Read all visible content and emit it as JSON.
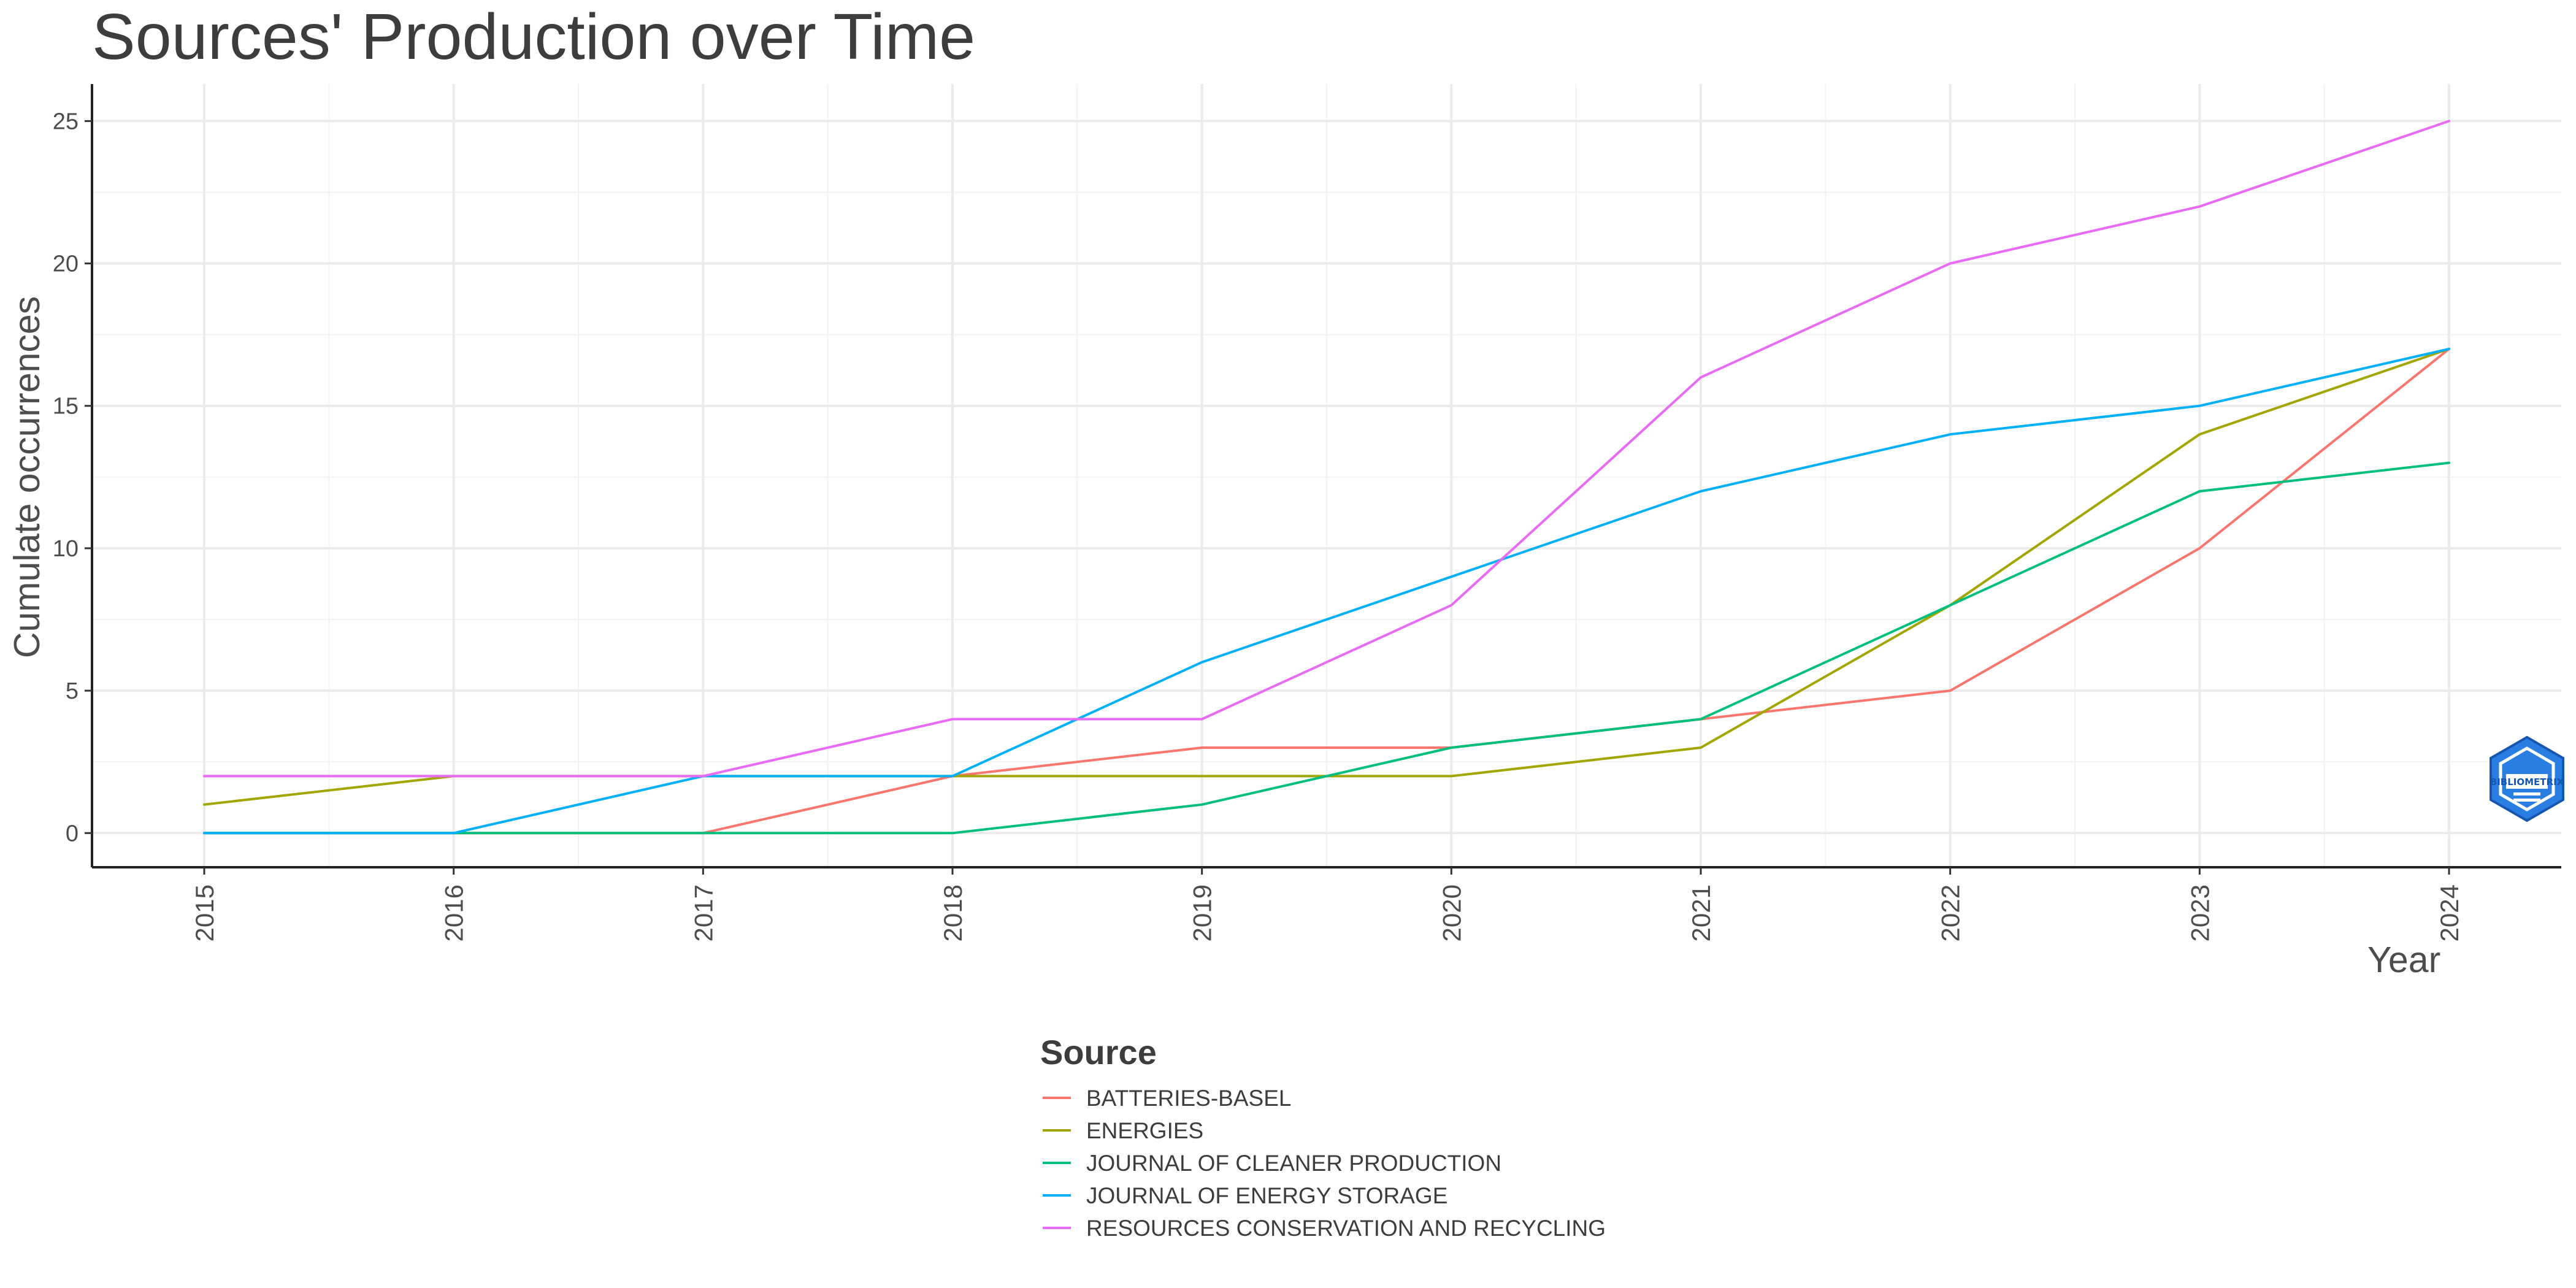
{
  "chart_data": {
    "type": "line",
    "title": "Sources' Production over Time",
    "xlabel": "Year",
    "ylabel": "Cumulate occurrences",
    "x": [
      2015,
      2016,
      2017,
      2018,
      2019,
      2020,
      2021,
      2022,
      2023,
      2024
    ],
    "xlim": [
      2014.55,
      2024.45
    ],
    "ylim": [
      -1.2,
      26.3
    ],
    "y_ticks": [
      0,
      5,
      10,
      15,
      20,
      25
    ],
    "grid": true,
    "legend": {
      "title": "Source",
      "position": "bottom"
    },
    "series": [
      {
        "name": "BATTERIES-BASEL",
        "color": "#F8766D",
        "values": [
          0,
          0,
          0,
          2,
          3,
          3,
          4,
          5,
          10,
          17
        ]
      },
      {
        "name": "ENERGIES",
        "color": "#A3A500",
        "values": [
          1,
          2,
          2,
          2,
          2,
          2,
          3,
          8,
          14,
          17
        ]
      },
      {
        "name": "JOURNAL OF CLEANER PRODUCTION",
        "color": "#00BF7D",
        "values": [
          0,
          0,
          0,
          0,
          1,
          3,
          4,
          8,
          12,
          13
        ]
      },
      {
        "name": "JOURNAL OF ENERGY STORAGE",
        "color": "#00B0F6",
        "values": [
          0,
          0,
          2,
          2,
          6,
          9,
          12,
          14,
          15,
          17
        ]
      },
      {
        "name": "RESOURCES CONSERVATION AND RECYCLING",
        "color": "#E76BF3",
        "values": [
          2,
          2,
          2,
          4,
          4,
          8,
          16,
          20,
          22,
          25
        ]
      }
    ]
  },
  "watermark": {
    "text": "BIBLIOMETRIX",
    "color": "#2a7de1"
  }
}
